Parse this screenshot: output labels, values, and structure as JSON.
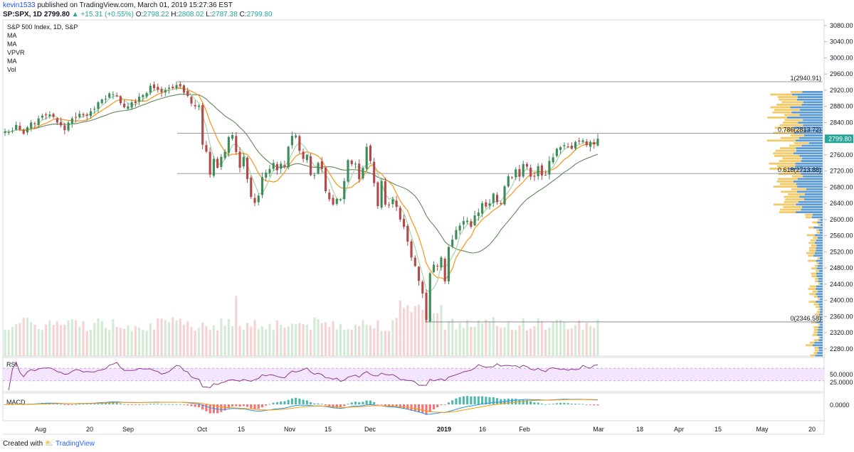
{
  "header": {
    "user": "kevin1533",
    "published": "published on TradingView.com, March 01, 2019 15:27:36 EST",
    "symbol": "SP:SPX, 1D",
    "last": "2799.80",
    "change_arrow": "▲",
    "change": "+15.31 (+0.55%)",
    "o_label": "O:",
    "o": "2798.22",
    "h_label": "H:",
    "h": "2808.02",
    "l_label": "L:",
    "l": "2787.38",
    "c_label": "C:",
    "c": "2799.80"
  },
  "legend": {
    "title": "S&P 500 Index, 1D, S&P",
    "items": [
      "MA",
      "MA",
      "VPVR",
      "MA",
      "Vol"
    ]
  },
  "rsi_label": "RSI",
  "macd_label": "MACD",
  "footer": {
    "created": "Created with",
    "brand": "TradingView"
  },
  "chart_data": {
    "type": "candlestick",
    "y_axis_ticks": [
      "3080.00",
      "3040.00",
      "3000.00",
      "2960.00",
      "2920.00",
      "2880.00",
      "2840.00",
      "2800.00",
      "2760.00",
      "2720.00",
      "2680.00",
      "2640.00",
      "2600.00",
      "2560.00",
      "2520.00",
      "2480.00",
      "2440.00",
      "2400.00",
      "2360.00",
      "2320.00",
      "2280.00"
    ],
    "ylim": [
      2262,
      3094
    ],
    "last_price_label": "2799.80",
    "fib_levels": [
      {
        "label": "1(2940.91)",
        "value": 2940.91
      },
      {
        "label": "0.786(2813.72)",
        "value": 2813.72
      },
      {
        "label": "0.618(2713.88)",
        "value": 2713.88
      },
      {
        "label": "0(2346.58)",
        "value": 2346.58
      }
    ],
    "x_axis_labels": [
      "Aug",
      "20",
      "Sep",
      "Oct",
      "15",
      "Nov",
      "15",
      "Dec",
      "2019",
      "16",
      "Feb",
      "Mar",
      "18",
      "Apr",
      "15",
      "May",
      "20"
    ],
    "closes": [
      2818,
      2816,
      2820,
      2834,
      2822,
      2812,
      2828,
      2840,
      2836,
      2850,
      2857,
      2858,
      2860,
      2854,
      2840,
      2833,
      2821,
      2840,
      2850,
      2852,
      2862,
      2858,
      2857,
      2868,
      2874,
      2890,
      2897,
      2899,
      2912,
      2910,
      2905,
      2888,
      2878,
      2880,
      2890,
      2888,
      2904,
      2908,
      2913,
      2931,
      2925,
      2921,
      2915,
      2920,
      2926,
      2925,
      2933,
      2930,
      2914,
      2906,
      2887,
      2880,
      2881,
      2785,
      2768,
      2711,
      2750,
      2728,
      2755,
      2768,
      2804,
      2809,
      2767,
      2728,
      2755,
      2700,
      2656,
      2641,
      2659,
      2705,
      2716,
      2725,
      2740,
      2722,
      2738,
      2731,
      2780,
      2807,
      2808,
      2770,
      2750,
      2760,
      2710,
      2710,
      2740,
      2725,
      2670,
      2650,
      2637,
      2651,
      2650,
      2695,
      2747,
      2737,
      2738,
      2700,
      2727,
      2780,
      2745,
      2690,
      2633,
      2695,
      2637,
      2636,
      2650,
      2631,
      2600,
      2582,
      2545,
      2506,
      2485,
      2448,
      2417,
      2351,
      2467,
      2488,
      2485,
      2506,
      2447,
      2532,
      2550,
      2574,
      2585,
      2596,
      2597,
      2582,
      2610,
      2617,
      2640,
      2632,
      2640,
      2664,
      2643,
      2640,
      2682,
      2707,
      2704,
      2724,
      2706,
      2737,
      2731,
      2706,
      2706,
      2732,
      2709,
      2710,
      2745,
      2754,
      2775,
      2779,
      2784,
      2780,
      2775,
      2792,
      2793,
      2796,
      2784,
      2792,
      2786,
      2800
    ],
    "ma_fast_color": "#a5d6a7",
    "ma_mid_color": "#f7931a",
    "ma_slow_color": "#6d8f66",
    "up_color": "#3d8d5a",
    "down_color": "#b5484b",
    "rsi_range": [
      0,
      100
    ],
    "rsi_ticks": [
      "50.0000",
      "25.0000"
    ],
    "macd_ticks": [
      "0.0000"
    ]
  }
}
